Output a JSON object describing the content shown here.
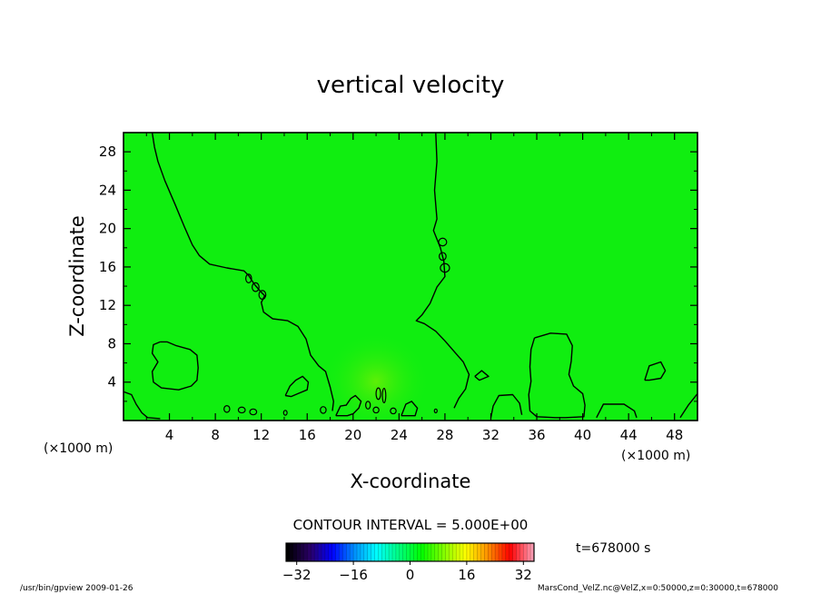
{
  "chart_data": {
    "type": "heatmap",
    "title": "vertical velocity",
    "xlabel": "X-coordinate",
    "ylabel": "Z-coordinate",
    "x_unit_left": "(×1000 m)",
    "x_unit_right": "(×1000 m)",
    "xlim": [
      0,
      50
    ],
    "ylim": [
      0,
      30
    ],
    "xticks": [
      4,
      8,
      12,
      16,
      20,
      24,
      28,
      32,
      36,
      40,
      44,
      48
    ],
    "xtick_labels": [
      "4",
      "8",
      "12",
      "16",
      "20",
      "24",
      "28",
      "32",
      "36",
      "40",
      "44",
      "48"
    ],
    "yticks": [
      4,
      8,
      12,
      16,
      20,
      24,
      28
    ],
    "ytick_labels": [
      "4",
      "8",
      "12",
      "16",
      "20",
      "24",
      "28"
    ],
    "contour_interval_text": "CONTOUR INTERVAL = 5.000E+00",
    "time_text": "t=678000 s",
    "colorbar": {
      "range": [
        -35,
        35
      ],
      "ticks": [
        -32,
        -16,
        0,
        16,
        32
      ],
      "tick_labels": [
        "−32",
        "−16",
        "0",
        "16",
        "32"
      ],
      "colors": [
        "#000000",
        "#2a0066",
        "#0000ff",
        "#0090ff",
        "#00ffff",
        "#00ff80",
        "#00ff00",
        "#80ff00",
        "#ffff00",
        "#ff9000",
        "#ff0000",
        "#ff99b0"
      ]
    },
    "field_color": "#10ee10",
    "contours": [
      {
        "name": "left-plume",
        "points": [
          [
            2.5,
            30
          ],
          [
            2.7,
            28.5
          ],
          [
            3.0,
            27
          ],
          [
            3.6,
            25
          ],
          [
            4.5,
            22.5
          ],
          [
            5.3,
            20.2
          ],
          [
            6.0,
            18.3
          ],
          [
            6.6,
            17.2
          ],
          [
            7.5,
            16.3
          ],
          [
            9.0,
            15.9
          ],
          [
            10.5,
            15.6
          ],
          [
            10.9,
            15.1
          ],
          [
            11.4,
            14.2
          ],
          [
            11.9,
            13.5
          ],
          [
            12.3,
            13.0
          ],
          [
            12.0,
            12.3
          ],
          [
            12.2,
            11.3
          ],
          [
            13.0,
            10.6
          ],
          [
            14.3,
            10.4
          ],
          [
            15.2,
            9.8
          ],
          [
            15.9,
            8.5
          ],
          [
            16.3,
            6.8
          ],
          [
            17.0,
            5.7
          ],
          [
            17.6,
            5.1
          ],
          [
            18.0,
            3.5
          ],
          [
            18.3,
            2.0
          ],
          [
            18.2,
            1.0
          ]
        ]
      },
      {
        "name": "right-plume",
        "points": [
          [
            27.2,
            30
          ],
          [
            27.3,
            27
          ],
          [
            27.1,
            24
          ],
          [
            27.3,
            21
          ],
          [
            27.0,
            19.8
          ],
          [
            27.6,
            18.0
          ],
          [
            27.9,
            16.6
          ],
          [
            28.0,
            15.0
          ],
          [
            27.3,
            13.9
          ],
          [
            26.7,
            12.2
          ],
          [
            26.0,
            11.0
          ],
          [
            25.5,
            10.4
          ],
          [
            26.2,
            10.1
          ],
          [
            27.2,
            9.3
          ],
          [
            28.0,
            8.3
          ],
          [
            28.8,
            7.2
          ],
          [
            29.6,
            6.1
          ],
          [
            30.1,
            4.8
          ],
          [
            29.8,
            3.3
          ],
          [
            29.2,
            2.3
          ],
          [
            28.8,
            1.3
          ]
        ]
      },
      {
        "name": "bottom-left-edge",
        "points": [
          [
            0,
            3.0
          ],
          [
            0.7,
            2.7
          ],
          [
            1.1,
            1.7
          ],
          [
            1.6,
            0.8
          ],
          [
            2.1,
            0.3
          ],
          [
            3.2,
            0.2
          ]
        ]
      },
      {
        "name": "left-cell",
        "points": [
          [
            3.2,
            8.2
          ],
          [
            2.6,
            7.9
          ],
          [
            2.5,
            7.0
          ],
          [
            3.0,
            6.1
          ],
          [
            2.5,
            5.1
          ],
          [
            2.6,
            4.0
          ],
          [
            3.3,
            3.4
          ],
          [
            4.8,
            3.2
          ],
          [
            5.9,
            3.6
          ],
          [
            6.4,
            4.2
          ],
          [
            6.5,
            5.5
          ],
          [
            6.4,
            6.8
          ],
          [
            5.8,
            7.4
          ],
          [
            4.6,
            7.8
          ],
          [
            3.8,
            8.2
          ],
          [
            3.2,
            8.2
          ]
        ]
      },
      {
        "name": "right-cell",
        "points": [
          [
            35.8,
            8.6
          ],
          [
            37.2,
            9.1
          ],
          [
            38.6,
            9.0
          ],
          [
            39.1,
            7.8
          ],
          [
            39.0,
            6.2
          ],
          [
            38.8,
            4.8
          ],
          [
            39.2,
            3.6
          ],
          [
            40.0,
            2.8
          ],
          [
            40.2,
            1.6
          ],
          [
            40.1,
            0.4
          ],
          [
            38.5,
            0.3
          ],
          [
            37.6,
            0.3
          ],
          [
            36.0,
            0.4
          ],
          [
            35.4,
            1.0
          ],
          [
            35.3,
            2.7
          ],
          [
            35.5,
            4.1
          ],
          [
            35.4,
            5.6
          ],
          [
            35.5,
            7.4
          ],
          [
            35.8,
            8.6
          ]
        ]
      },
      {
        "name": "bottom-cell-32",
        "points": [
          [
            32.0,
            0.3
          ],
          [
            32.2,
            1.5
          ],
          [
            32.7,
            2.6
          ],
          [
            33.9,
            2.7
          ],
          [
            34.5,
            1.8
          ],
          [
            34.7,
            0.6
          ]
        ]
      },
      {
        "name": "bottom-cell-42",
        "points": [
          [
            41.2,
            0.3
          ],
          [
            41.8,
            1.7
          ],
          [
            43.6,
            1.7
          ],
          [
            44.5,
            1.0
          ],
          [
            44.7,
            0.3
          ]
        ]
      },
      {
        "name": "bottom-right-edge",
        "points": [
          [
            48.5,
            0.3
          ],
          [
            49.2,
            1.6
          ],
          [
            50,
            2.8
          ]
        ]
      },
      {
        "name": "small-cell-45",
        "points": [
          [
            45.4,
            4.2
          ],
          [
            45.8,
            5.7
          ],
          [
            46.8,
            6.1
          ],
          [
            47.2,
            5.2
          ],
          [
            46.8,
            4.4
          ],
          [
            45.8,
            4.2
          ],
          [
            45.4,
            4.2
          ]
        ]
      },
      {
        "name": "small-cell-31",
        "points": [
          [
            30.6,
            4.6
          ],
          [
            31.2,
            5.2
          ],
          [
            31.8,
            4.6
          ],
          [
            31.0,
            4.2
          ],
          [
            30.6,
            4.6
          ]
        ]
      },
      {
        "name": "cell-14",
        "points": [
          [
            14.1,
            2.6
          ],
          [
            14.5,
            3.6
          ],
          [
            15.0,
            4.2
          ],
          [
            15.6,
            4.6
          ],
          [
            16.1,
            4.0
          ],
          [
            16.0,
            3.2
          ],
          [
            15.2,
            2.8
          ],
          [
            14.6,
            2.5
          ],
          [
            14.1,
            2.6
          ]
        ]
      },
      {
        "name": "cell-19",
        "points": [
          [
            18.5,
            0.5
          ],
          [
            18.9,
            1.5
          ],
          [
            19.4,
            1.6
          ],
          [
            19.8,
            2.3
          ],
          [
            20.2,
            2.6
          ],
          [
            20.7,
            2.0
          ],
          [
            20.5,
            1.3
          ],
          [
            20.0,
            0.7
          ],
          [
            19.5,
            0.5
          ],
          [
            18.5,
            0.5
          ]
        ]
      },
      {
        "name": "cell-24",
        "points": [
          [
            24.2,
            0.5
          ],
          [
            24.6,
            1.7
          ],
          [
            25.1,
            2.0
          ],
          [
            25.6,
            1.3
          ],
          [
            25.4,
            0.5
          ],
          [
            24.2,
            0.5
          ]
        ]
      }
    ],
    "small_contours": [
      {
        "x": 10.9,
        "z": 14.8,
        "rx": 0.25,
        "rz": 0.45
      },
      {
        "x": 11.5,
        "z": 13.9,
        "rx": 0.3,
        "rz": 0.45
      },
      {
        "x": 12.1,
        "z": 13.1,
        "rx": 0.3,
        "rz": 0.45
      },
      {
        "x": 27.8,
        "z": 18.6,
        "rx": 0.35,
        "rz": 0.4
      },
      {
        "x": 27.8,
        "z": 17.1,
        "rx": 0.3,
        "rz": 0.4
      },
      {
        "x": 28.0,
        "z": 15.9,
        "rx": 0.4,
        "rz": 0.45
      },
      {
        "x": 22.2,
        "z": 2.8,
        "rx": 0.2,
        "rz": 0.6
      },
      {
        "x": 22.7,
        "z": 2.6,
        "rx": 0.15,
        "rz": 0.75
      },
      {
        "x": 22.0,
        "z": 1.1,
        "rx": 0.25,
        "rz": 0.3
      },
      {
        "x": 9.0,
        "z": 1.2,
        "rx": 0.25,
        "rz": 0.35
      },
      {
        "x": 10.3,
        "z": 1.1,
        "rx": 0.3,
        "rz": 0.3
      },
      {
        "x": 11.3,
        "z": 0.9,
        "rx": 0.3,
        "rz": 0.3
      },
      {
        "x": 14.1,
        "z": 0.8,
        "rx": 0.15,
        "rz": 0.25
      },
      {
        "x": 17.4,
        "z": 1.1,
        "rx": 0.25,
        "rz": 0.35
      },
      {
        "x": 27.2,
        "z": 1.0,
        "rx": 0.12,
        "rz": 0.2
      },
      {
        "x": 21.3,
        "z": 1.6,
        "rx": 0.2,
        "rz": 0.4
      },
      {
        "x": 23.5,
        "z": 1.0,
        "rx": 0.25,
        "rz": 0.3
      }
    ]
  },
  "footer": {
    "left": "/usr/bin/gpview  2009-01-26",
    "right": "MarsCond_VelZ.nc@VelZ,x=0:50000,z=0:30000,t=678000"
  }
}
